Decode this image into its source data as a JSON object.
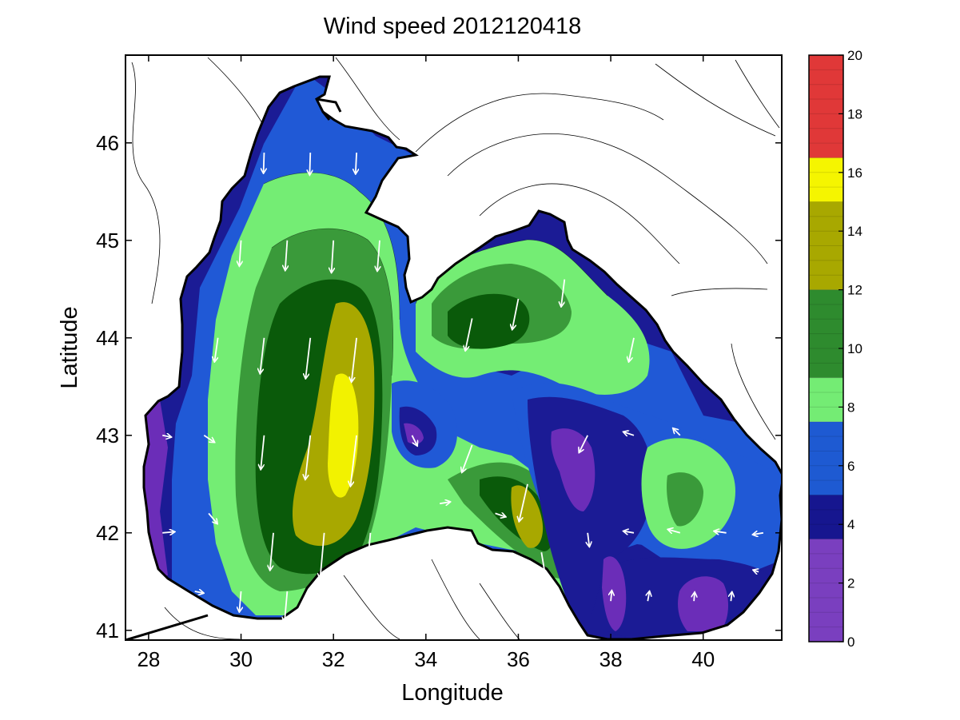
{
  "chart_data": {
    "type": "filled-contour-map-with-vectors",
    "title": "Wind speed 2012120418",
    "xlabel": "Longitude",
    "ylabel": "Latitude",
    "xlim": [
      27.5,
      41.7
    ],
    "ylim": [
      40.9,
      46.9
    ],
    "xticks": [
      28,
      30,
      32,
      34,
      36,
      38,
      40
    ],
    "xtick_labels": [
      "28",
      "30",
      "32",
      "34",
      "36",
      "38",
      "40"
    ],
    "yticks": [
      41,
      42,
      43,
      44,
      45,
      46
    ],
    "ytick_labels": [
      "41",
      "42",
      "43",
      "44",
      "45",
      "46"
    ],
    "colorbar": {
      "range": [
        0,
        20
      ],
      "ticks": [
        0,
        2,
        4,
        6,
        8,
        10,
        12,
        14,
        16,
        18,
        20
      ],
      "tick_labels": [
        "0",
        "2",
        "4",
        "6",
        "8",
        "10",
        "12",
        "14",
        "16",
        "18",
        "20"
      ],
      "bands": [
        {
          "from": 0,
          "to": 3.5,
          "color": "#7a3fbf"
        },
        {
          "from": 3.5,
          "to": 5,
          "color": "#16168f"
        },
        {
          "from": 5,
          "to": 7.5,
          "color": "#1e5ad2"
        },
        {
          "from": 7.5,
          "to": 9,
          "color": "#74ec74"
        },
        {
          "from": 9,
          "to": 12,
          "color": "#2e8b2e"
        },
        {
          "from": 12,
          "to": 15,
          "color": "#a8a800"
        },
        {
          "from": 15,
          "to": 16.5,
          "color": "#f5f500"
        },
        {
          "from": 16.5,
          "to": 20,
          "color": "#e03838"
        }
      ]
    },
    "speed_levels_shown": [
      {
        "name": "below-4",
        "color": "#1b1b95"
      },
      {
        "name": "4-6",
        "color": "#2059d6"
      },
      {
        "name": "6-8",
        "color": "#74ed74"
      },
      {
        "name": "8-10",
        "color": "#3a9a3a"
      },
      {
        "name": "10-12",
        "color": "#0a5a0a"
      },
      {
        "name": "12-14",
        "color": "#a8a800"
      },
      {
        "name": "14-16",
        "color": "#f2f200"
      },
      {
        "name": "calm-pockets",
        "color": "#6b2db8"
      }
    ],
    "wind_field": [
      {
        "lon": 30.5,
        "lat": 45.9,
        "u": -0.2,
        "v": -6.0
      },
      {
        "lon": 31.5,
        "lat": 45.9,
        "u": -0.2,
        "v": -6.5
      },
      {
        "lon": 32.5,
        "lat": 45.9,
        "u": -0.3,
        "v": -6.2
      },
      {
        "lon": 30.0,
        "lat": 45.0,
        "u": -0.5,
        "v": -7.5
      },
      {
        "lon": 31.0,
        "lat": 45.0,
        "u": -0.6,
        "v": -8.8
      },
      {
        "lon": 32.0,
        "lat": 45.0,
        "u": -0.6,
        "v": -9.5
      },
      {
        "lon": 33.0,
        "lat": 45.0,
        "u": -0.7,
        "v": -9.0
      },
      {
        "lon": 29.5,
        "lat": 44.0,
        "u": -1.0,
        "v": -7.0
      },
      {
        "lon": 30.5,
        "lat": 44.0,
        "u": -1.2,
        "v": -10.5
      },
      {
        "lon": 31.5,
        "lat": 44.0,
        "u": -1.4,
        "v": -12.0
      },
      {
        "lon": 32.5,
        "lat": 44.0,
        "u": -1.5,
        "v": -13.0
      },
      {
        "lon": 35.0,
        "lat": 44.2,
        "u": -2.0,
        "v": -9.5
      },
      {
        "lon": 36.0,
        "lat": 44.4,
        "u": -1.8,
        "v": -9.0
      },
      {
        "lon": 37.0,
        "lat": 44.6,
        "u": -1.0,
        "v": -8.0
      },
      {
        "lon": 38.5,
        "lat": 44.0,
        "u": -1.5,
        "v": -7.0
      },
      {
        "lon": 28.3,
        "lat": 43.0,
        "u": 2.5,
        "v": -0.5
      },
      {
        "lon": 29.2,
        "lat": 43.0,
        "u": 3.0,
        "v": -2.0
      },
      {
        "lon": 30.5,
        "lat": 43.0,
        "u": -1.0,
        "v": -10.0
      },
      {
        "lon": 31.5,
        "lat": 43.0,
        "u": -1.5,
        "v": -13.0
      },
      {
        "lon": 32.5,
        "lat": 43.0,
        "u": -1.8,
        "v": -15.0
      },
      {
        "lon": 33.7,
        "lat": 43.0,
        "u": 1.5,
        "v": -3.0
      },
      {
        "lon": 35.0,
        "lat": 42.9,
        "u": -3.0,
        "v": -8.0
      },
      {
        "lon": 36.2,
        "lat": 42.5,
        "u": -2.5,
        "v": -11.0
      },
      {
        "lon": 37.5,
        "lat": 43.0,
        "u": -2.5,
        "v": -5.0
      },
      {
        "lon": 38.5,
        "lat": 43.0,
        "u": -3.0,
        "v": 1.0
      },
      {
        "lon": 39.5,
        "lat": 43.0,
        "u": -2.0,
        "v": 2.0
      },
      {
        "lon": 28.3,
        "lat": 42.0,
        "u": 3.5,
        "v": 0.3
      },
      {
        "lon": 29.3,
        "lat": 42.2,
        "u": 2.5,
        "v": -3.0
      },
      {
        "lon": 30.7,
        "lat": 42.0,
        "u": -1.0,
        "v": -11.0
      },
      {
        "lon": 31.8,
        "lat": 42.0,
        "u": -1.2,
        "v": -13.5
      },
      {
        "lon": 32.8,
        "lat": 42.0,
        "u": -1.0,
        "v": -11.0
      },
      {
        "lon": 34.3,
        "lat": 42.3,
        "u": 3.0,
        "v": 0.5
      },
      {
        "lon": 35.5,
        "lat": 42.2,
        "u": 3.0,
        "v": -1.0
      },
      {
        "lon": 36.5,
        "lat": 41.8,
        "u": 1.5,
        "v": -9.0
      },
      {
        "lon": 37.5,
        "lat": 42.0,
        "u": 0.5,
        "v": -4.0
      },
      {
        "lon": 38.5,
        "lat": 42.0,
        "u": -3.0,
        "v": 0.5
      },
      {
        "lon": 39.5,
        "lat": 42.0,
        "u": -3.5,
        "v": 1.0
      },
      {
        "lon": 40.5,
        "lat": 42.0,
        "u": -3.5,
        "v": 0.5
      },
      {
        "lon": 41.3,
        "lat": 42.0,
        "u": -3.0,
        "v": -0.5
      },
      {
        "lon": 29.0,
        "lat": 41.4,
        "u": 2.5,
        "v": -0.5
      },
      {
        "lon": 30.0,
        "lat": 41.4,
        "u": -0.5,
        "v": -6.0
      },
      {
        "lon": 31.0,
        "lat": 41.4,
        "u": -0.8,
        "v": -9.0
      },
      {
        "lon": 32.0,
        "lat": 41.4,
        "u": -0.6,
        "v": -10.0
      },
      {
        "lon": 38.0,
        "lat": 41.3,
        "u": 0.3,
        "v": 3.0
      },
      {
        "lon": 38.8,
        "lat": 41.3,
        "u": 0.5,
        "v": 2.8
      },
      {
        "lon": 39.8,
        "lat": 41.3,
        "u": 0.2,
        "v": 2.5
      },
      {
        "lon": 40.6,
        "lat": 41.3,
        "u": 0.3,
        "v": 2.6
      },
      {
        "lon": 41.2,
        "lat": 41.6,
        "u": -1.5,
        "v": 0.5
      }
    ],
    "grid": false
  }
}
